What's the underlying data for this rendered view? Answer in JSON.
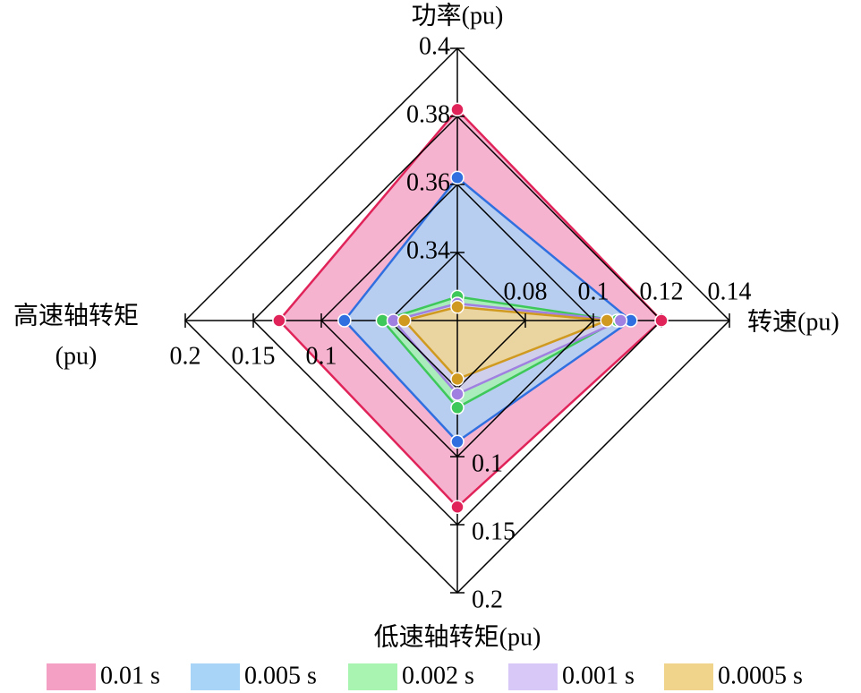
{
  "chart_data": {
    "type": "radar",
    "axes": [
      {
        "label": [
          "功率(pu)"
        ],
        "lim": [
          0.32,
          0.4
        ],
        "ticks": [
          0.34,
          0.36,
          0.38,
          0.4
        ]
      },
      {
        "label": [
          "转速(pu)"
        ],
        "lim": [
          0.06,
          0.14
        ],
        "ticks": [
          0.08,
          0.1,
          0.12,
          0.14
        ]
      },
      {
        "label": [
          "低速轴转矩(pu)"
        ],
        "lim": [
          0,
          0.2
        ],
        "ticks": [
          0.1,
          0.15,
          0.2
        ]
      },
      {
        "label": [
          "高速轴转矩",
          "(pu)"
        ],
        "lim": [
          0,
          0.2
        ],
        "ticks": [
          0.1,
          0.15,
          0.2
        ]
      }
    ],
    "series": [
      {
        "name": "0.01 s",
        "color": "#f4a0c4",
        "edge": "#e0245a",
        "values": [
          0.382,
          0.12,
          0.137,
          0.131
        ]
      },
      {
        "name": "0.005 s",
        "color": "#a8d4f8",
        "edge": "#2f6fe0",
        "values": [
          0.362,
          0.111,
          0.089,
          0.083
        ]
      },
      {
        "name": "0.002 s",
        "color": "#a8f4b0",
        "edge": "#3ec85a",
        "values": [
          0.327,
          0.107,
          0.064,
          0.055
        ]
      },
      {
        "name": "0.001 s",
        "color": "#d8c8f8",
        "edge": "#a080e0",
        "values": [
          0.325,
          0.108,
          0.054,
          0.047
        ]
      },
      {
        "name": "0.0005 s",
        "color": "#f0d48c",
        "edge": "#d09a20",
        "values": [
          0.324,
          0.104,
          0.043,
          0.039
        ]
      }
    ]
  }
}
